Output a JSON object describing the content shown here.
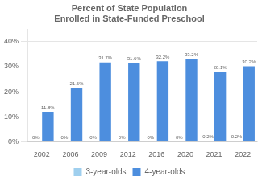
{
  "chart_data": {
    "type": "bar",
    "title": "Percent of State Population\nEnrolled in State-Funded Preschool",
    "categories": [
      "2002",
      "2006",
      "2009",
      "2012",
      "2016",
      "2020",
      "2021",
      "2022"
    ],
    "series": [
      {
        "name": "3-year-olds",
        "color": "#9fcfee",
        "values": [
          0.0,
          0.0,
          0.0,
          0.0,
          0.0,
          0.0,
          0.2,
          0.2
        ],
        "value_labels": [
          "0%",
          "0%",
          "0%",
          "0%",
          "0%",
          "0%",
          "0.2%",
          "0.2%"
        ]
      },
      {
        "name": "4-year-olds",
        "color": "#4d8ede",
        "values": [
          11.8,
          21.6,
          31.7,
          31.6,
          32.2,
          33.2,
          28.1,
          30.2
        ],
        "value_labels": [
          "11.8%",
          "21.6%",
          "31.7%",
          "31.6%",
          "32.2%",
          "33.2%",
          "28.1%",
          "30.2%"
        ]
      }
    ],
    "ylim": [
      0,
      45
    ],
    "yticks": [
      {
        "value": 0,
        "label": "0%"
      },
      {
        "value": 10,
        "label": "10%"
      },
      {
        "value": 20,
        "label": "20%"
      },
      {
        "value": 30,
        "label": "30%"
      },
      {
        "value": 40,
        "label": "40%"
      }
    ],
    "grid": true,
    "legend": "bottom",
    "data_labels": true
  }
}
